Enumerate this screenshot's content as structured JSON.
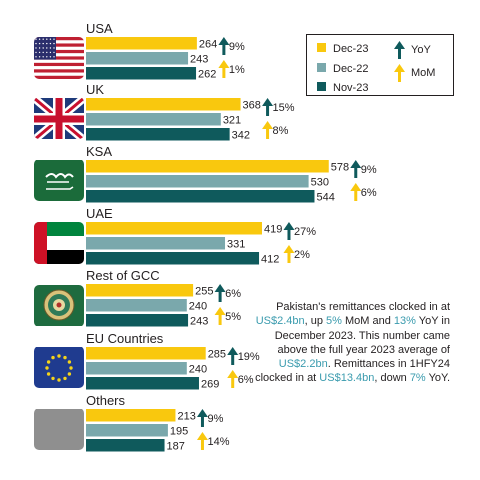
{
  "chart_data": {
    "type": "bar",
    "orientation": "horizontal",
    "categories": [
      "USA",
      "UK",
      "KSA",
      "UAE",
      "Rest of GCC",
      "EU Countries",
      "Others"
    ],
    "series": [
      {
        "name": "Dec-23",
        "color": "#f9c80e",
        "values": [
          264,
          368,
          578,
          419,
          255,
          285,
          213
        ]
      },
      {
        "name": "Dec-22",
        "color": "#7aa8ac",
        "values": [
          243,
          321,
          530,
          331,
          240,
          240,
          195
        ]
      },
      {
        "name": "Nov-23",
        "color": "#0f5a5c",
        "values": [
          262,
          342,
          544,
          412,
          243,
          269,
          187
        ]
      }
    ],
    "yoy": [
      "9%",
      "15%",
      "9%",
      "27%",
      "6%",
      "19%",
      "9%"
    ],
    "mom": [
      "1%",
      "8%",
      "6%",
      "2%",
      "5%",
      "6%",
      "14%"
    ],
    "flags": [
      "usa-flag",
      "uk-flag",
      "ksa-flag",
      "uae-flag",
      "gcc-emblem",
      "eu-flag",
      "blank"
    ],
    "legend": {
      "placement": "top-right",
      "yoy_label": "YoY",
      "mom_label": "MoM",
      "yoy_color": "#0f5a5c",
      "mom_color": "#f9c80e"
    }
  },
  "note": {
    "parts": [
      {
        "text": "Pakistan's remittances clocked in at ",
        "highlight": false
      },
      {
        "text": "US$2.4bn",
        "highlight": true
      },
      {
        "text": ", up ",
        "highlight": false
      },
      {
        "text": "5%",
        "highlight": true
      },
      {
        "text": " MoM and ",
        "highlight": false
      },
      {
        "text": "13%",
        "highlight": true
      },
      {
        "text": " YoY in December 2023. This number came above the full year 2023 average of ",
        "highlight": false
      },
      {
        "text": "US$2.2bn",
        "highlight": true
      },
      {
        "text": ". Remittances in 1HFY24 clocked in at ",
        "highlight": false
      },
      {
        "text": "US$13.4bn",
        "highlight": true
      },
      {
        "text": ", down ",
        "highlight": false
      },
      {
        "text": "7%",
        "highlight": true
      },
      {
        "text": " YoY.",
        "highlight": false
      }
    ]
  }
}
